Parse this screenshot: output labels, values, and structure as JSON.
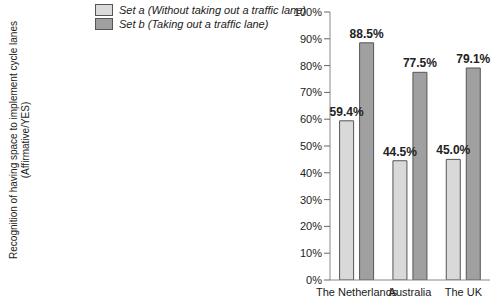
{
  "chart_data": {
    "type": "bar",
    "y_label": "Recognition of having space to implement cycle lanes (Affirmative/YES)",
    "categories": [
      "The Netherlands",
      "Australia",
      "The UK"
    ],
    "series": [
      {
        "name": "Set a (Without taking out a traffic lane)",
        "color": "#d9d9d9",
        "values": [
          59.4,
          44.5,
          45.0
        ],
        "value_labels": [
          "59.4%",
          "44.5%",
          "45.0%"
        ]
      },
      {
        "name": "Set b (Taking out a traffic lane)",
        "color": "#a0a0a0",
        "values": [
          88.5,
          77.5,
          79.1
        ],
        "value_labels": [
          "88.5%",
          "77.5%",
          "79.1%"
        ]
      }
    ],
    "ylim": [
      0,
      100
    ],
    "yticks": [
      {
        "value": 0,
        "label": "0%"
      },
      {
        "value": 10,
        "label": "10%"
      },
      {
        "value": 20,
        "label": "20%"
      },
      {
        "value": 30,
        "label": "30%"
      },
      {
        "value": 40,
        "label": "40%"
      },
      {
        "value": 50,
        "label": "50%"
      },
      {
        "value": 60,
        "label": "60%"
      },
      {
        "value": 70,
        "label": "70%"
      },
      {
        "value": 80,
        "label": "80%"
      },
      {
        "value": 90,
        "label": "90%"
      },
      {
        "value": 100,
        "label": "100%"
      }
    ],
    "grid": false,
    "legend": "top-left",
    "data_labels": true
  }
}
